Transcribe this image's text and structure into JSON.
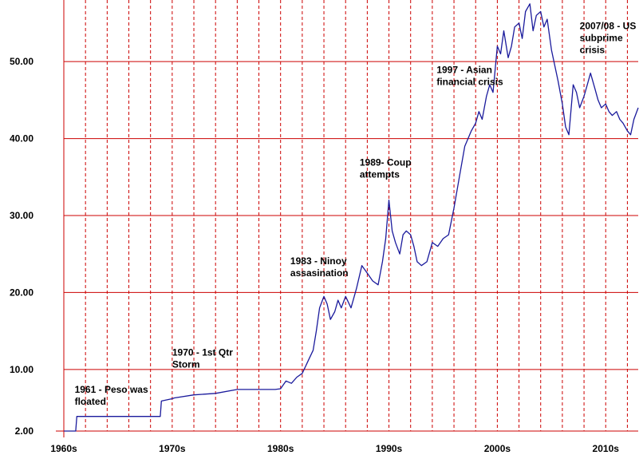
{
  "chart_data": {
    "type": "line",
    "xlim": [
      1960,
      2013
    ],
    "ylim": [
      2,
      58
    ],
    "grid": true,
    "colors": {
      "series": "#1a1a9c",
      "grid": "#cc0000",
      "axis": "#cc0000",
      "text": "#000000"
    },
    "x_ticks": [
      {
        "value": 1960,
        "label": "1960s"
      },
      {
        "value": 1970,
        "label": "1970s"
      },
      {
        "value": 1980,
        "label": "1980s"
      },
      {
        "value": 1990,
        "label": "1990s"
      },
      {
        "value": 2000,
        "label": "2000s"
      },
      {
        "value": 2010,
        "label": "2010s"
      }
    ],
    "y_ticks": [
      {
        "value": 2,
        "label": "2.00"
      },
      {
        "value": 10,
        "label": "10.00"
      },
      {
        "value": 20,
        "label": "20.00"
      },
      {
        "value": 30,
        "label": "30.00"
      },
      {
        "value": 40,
        "label": "40.00"
      },
      {
        "value": 50,
        "label": "50.00"
      }
    ],
    "series": [
      {
        "x": [
          1960.0,
          1961.1,
          1961.2,
          1968.9,
          1969.0,
          1970.0,
          1970.2,
          1972.0,
          1974.0,
          1976.0,
          1978.0,
          1979.5,
          1980.0,
          1980.5,
          1981.0,
          1981.5,
          1982.0,
          1982.5,
          1983.0,
          1983.3,
          1983.6,
          1984.0,
          1984.3,
          1984.6,
          1985.0,
          1985.3,
          1985.6,
          1986.0,
          1986.5,
          1987.0,
          1987.5,
          1988.0,
          1988.5,
          1989.0,
          1989.4,
          1989.7,
          1990.0,
          1990.3,
          1990.6,
          1991.0,
          1991.3,
          1991.6,
          1992.0,
          1992.3,
          1992.6,
          1993.0,
          1993.5,
          1994.0,
          1994.5,
          1995.0,
          1995.5,
          1996.0,
          1996.5,
          1997.0,
          1997.3,
          1997.6,
          1998.0,
          1998.3,
          1998.6,
          1999.0,
          1999.3,
          1999.6,
          2000.0,
          2000.3,
          2000.6,
          2001.0,
          2001.3,
          2001.6,
          2002.0,
          2002.3,
          2002.6,
          2003.0,
          2003.3,
          2003.6,
          2004.0,
          2004.3,
          2004.6,
          2005.0,
          2005.3,
          2005.6,
          2006.0,
          2006.3,
          2006.6,
          2007.0,
          2007.3,
          2007.6,
          2008.0,
          2008.3,
          2008.6,
          2009.0,
          2009.3,
          2009.6,
          2010.0,
          2010.3,
          2010.6,
          2011.0,
          2011.3,
          2011.6,
          2012.0,
          2012.3,
          2012.6,
          2013.0
        ],
        "y": [
          2.0,
          2.0,
          3.9,
          3.9,
          5.9,
          6.2,
          6.3,
          6.7,
          6.9,
          7.4,
          7.4,
          7.4,
          7.5,
          8.5,
          8.2,
          9.0,
          9.5,
          11.0,
          12.5,
          15.0,
          18.0,
          19.5,
          18.5,
          16.5,
          17.5,
          19.0,
          18.0,
          19.5,
          18.0,
          20.5,
          23.5,
          22.5,
          21.5,
          21.0,
          24.0,
          27.0,
          32.0,
          28.0,
          26.5,
          25.0,
          27.5,
          28.0,
          27.5,
          26.0,
          24.0,
          23.5,
          24.0,
          26.5,
          26.0,
          27.0,
          27.5,
          31.0,
          35.0,
          39.0,
          40.0,
          41.0,
          42.0,
          43.5,
          42.5,
          45.5,
          47.0,
          46.0,
          52.0,
          51.0,
          54.0,
          50.5,
          52.0,
          54.5,
          55.0,
          53.0,
          56.5,
          57.5,
          54.0,
          56.0,
          56.5,
          54.5,
          55.5,
          51.5,
          49.5,
          47.5,
          44.5,
          41.5,
          40.5,
          47.0,
          46.0,
          44.0,
          45.5,
          47.0,
          48.5,
          46.5,
          45.0,
          44.0,
          44.5,
          43.5,
          43.0,
          43.5,
          42.5,
          42.0,
          41.0,
          40.5,
          42.5,
          44.0
        ]
      }
    ],
    "annotations": [
      {
        "lines": [
          "1961 - Peso was",
          "floated"
        ],
        "x": 1961.0,
        "y": 7.0
      },
      {
        "lines": [
          "1970 - 1st Qtr",
          "Storm"
        ],
        "x": 1970.0,
        "y": 11.8
      },
      {
        "lines": [
          "1983 - Ninoy",
          "assasination"
        ],
        "x": 1980.9,
        "y": 23.7
      },
      {
        "lines": [
          "1989- Coup",
          "attempts"
        ],
        "x": 1987.3,
        "y": 36.5
      },
      {
        "lines": [
          "1997 - Asian",
          "financial crisis"
        ],
        "x": 1994.4,
        "y": 48.5
      },
      {
        "lines": [
          "2007/08 - US",
          "subprime",
          "crisis"
        ],
        "x": 2007.6,
        "y": 54.2
      }
    ]
  }
}
